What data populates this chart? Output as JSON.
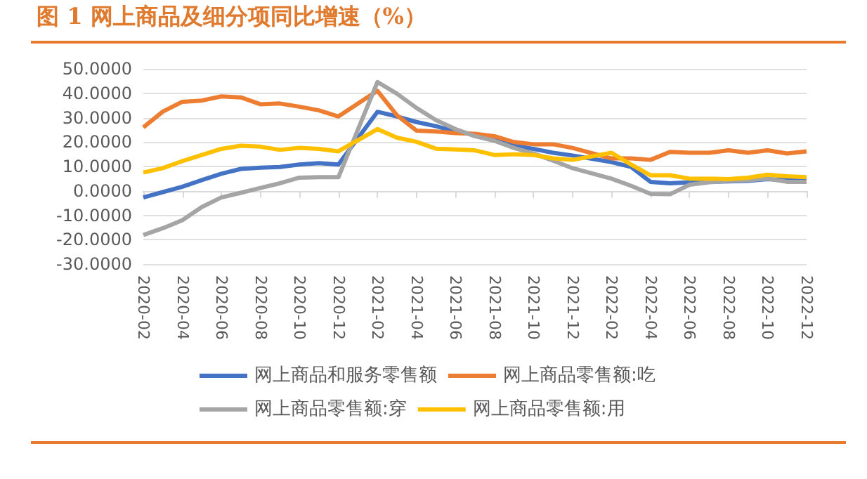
{
  "chart_data": {
    "type": "line",
    "title": "图 1 网上商品及细分项同比增速（%）",
    "categories": [
      "2020-02",
      null,
      "2020-04",
      null,
      "2020-06",
      null,
      "2020-08",
      null,
      "2020-10",
      null,
      "2020-12",
      null,
      "2021-02",
      null,
      "2021-04",
      null,
      "2021-06",
      null,
      "2021-08",
      null,
      "2021-10",
      null,
      "2021-12",
      null,
      "2022-02",
      null,
      "2022-04",
      null,
      "2022-06",
      null,
      "2022-08",
      null,
      "2022-10",
      null,
      "2022-12"
    ],
    "series": [
      {
        "name": "网上商品和服务零售额",
        "color": "#4472c4",
        "values": [
          -2.7,
          -0.5,
          1.7,
          4.4,
          7,
          9,
          9.5,
          9.8,
          10.8,
          11.4,
          10.8,
          null,
          32.4,
          30.5,
          28.2,
          26.5,
          24.3,
          23,
          21,
          18.5,
          17.2,
          15.6,
          14.5,
          null,
          11.8,
          9.8,
          3.7,
          3.1,
          3.5,
          3.7,
          3.9,
          4.1,
          4.8,
          4.4,
          4.4
        ]
      },
      {
        "name": "网上商品零售额:吃",
        "color": "#ed7d31",
        "values": [
          26,
          32.5,
          36.5,
          37,
          38.7,
          38.3,
          35.5,
          35.8,
          34.5,
          33,
          30.5,
          null,
          41,
          31,
          24.7,
          24.3,
          23.7,
          23.4,
          22.4,
          20,
          19.1,
          19.1,
          17.6,
          null,
          13.3,
          13.3,
          12.7,
          16,
          15.6,
          15.6,
          16.6,
          15.6,
          16.6,
          15.3,
          16.2
        ]
      },
      {
        "name": "网上商品零售额:穿",
        "color": "#a5a5a5",
        "values": [
          -18.1,
          -15.3,
          -12,
          -6.6,
          -2.7,
          -0.8,
          1.2,
          3.1,
          5.4,
          5.6,
          5.6,
          null,
          44.6,
          39.8,
          34,
          29,
          25.3,
          22.4,
          20.5,
          17.6,
          15.3,
          12.4,
          9.3,
          null,
          5,
          2.1,
          -1.2,
          -1.4,
          2.5,
          3.5,
          4.1,
          4.4,
          5,
          3.7,
          3.7
        ]
      },
      {
        "name": "网上商品零售额:用",
        "color": "#ffc000",
        "values": [
          7.5,
          9.3,
          12.2,
          14.7,
          17.2,
          18.5,
          18.1,
          16.8,
          17.6,
          17.2,
          16.2,
          null,
          25.3,
          21.8,
          20.1,
          17.3,
          17,
          16.6,
          14.7,
          15,
          14.7,
          13.3,
          12.7,
          null,
          15.6,
          10.8,
          6.4,
          6.4,
          5,
          5,
          4.8,
          5.4,
          6.6,
          6,
          5.6
        ]
      }
    ],
    "ylim": [
      -30,
      50
    ],
    "yticks": [
      {
        "value": -30,
        "label": "-30.0000"
      },
      {
        "value": -20,
        "label": "-20.0000"
      },
      {
        "value": -10,
        "label": "-10.0000"
      },
      {
        "value": 0,
        "label": "0.0000"
      },
      {
        "value": 10,
        "label": "10.0000"
      },
      {
        "value": 20,
        "label": "20.0000"
      },
      {
        "value": 30,
        "label": "30.0000"
      },
      {
        "value": 40,
        "label": "40.0000"
      },
      {
        "value": 50,
        "label": "50.0000"
      }
    ],
    "grid": "y",
    "legend": "bottom",
    "marker": "none",
    "line_style": "solid"
  }
}
